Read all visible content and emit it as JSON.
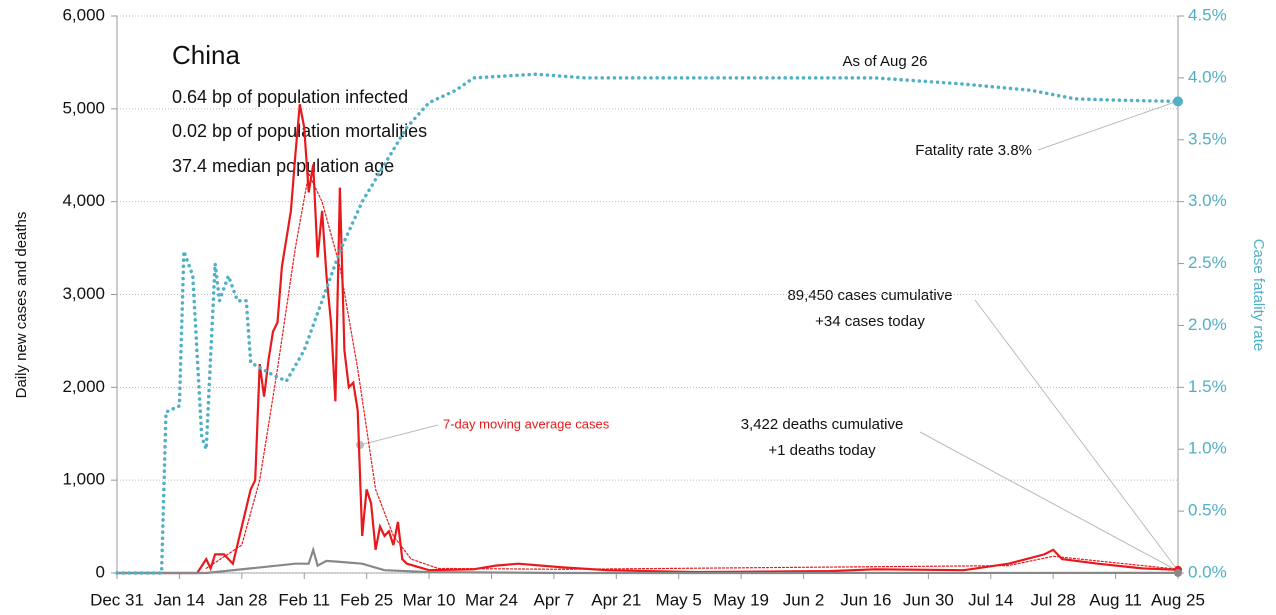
{
  "chart_data": {
    "type": "line",
    "title": "China",
    "subtitle": [
      "0.64 bp of population infected",
      "0.02 bp of population mortalities",
      "37.4 median population age"
    ],
    "ylabel": "Daily new cases and deaths",
    "y2label": "Case fatality rate",
    "annotations": [
      "As of Aug 26",
      "Fatality rate 3.8%",
      "89,450 cases cumulative",
      "+34 cases today",
      "3,422 deaths cumulative",
      "+1 deaths today"
    ],
    "xlim": [
      0,
      238
    ],
    "xticks": [
      {
        "value": 0,
        "label": "Dec 31"
      },
      {
        "value": 14,
        "label": "Jan 14"
      },
      {
        "value": 28,
        "label": "Jan 28"
      },
      {
        "value": 42,
        "label": "Feb 11"
      },
      {
        "value": 56,
        "label": "Feb 25"
      },
      {
        "value": 70,
        "label": "Mar 10"
      },
      {
        "value": 84,
        "label": "Mar 24"
      },
      {
        "value": 98,
        "label": "Apr 7"
      },
      {
        "value": 112,
        "label": "Apr 21"
      },
      {
        "value": 126,
        "label": "May 5"
      },
      {
        "value": 140,
        "label": "May 19"
      },
      {
        "value": 154,
        "label": "Jun 2"
      },
      {
        "value": 168,
        "label": "Jun 16"
      },
      {
        "value": 182,
        "label": "Jun 30"
      },
      {
        "value": 196,
        "label": "Jul 14"
      },
      {
        "value": 210,
        "label": "Jul 28"
      },
      {
        "value": 224,
        "label": "Aug 11"
      },
      {
        "value": 238,
        "label": "Aug 25"
      }
    ],
    "ylim": [
      0,
      6000
    ],
    "yticks": [
      0,
      {
        "value": 1000,
        "label": "1,000"
      },
      {
        "value": 2000,
        "label": "2,000"
      },
      {
        "value": 3000,
        "label": "3,000"
      },
      {
        "value": 4000,
        "label": "4,000"
      },
      {
        "value": 5000,
        "label": "5,000"
      },
      {
        "value": 6000,
        "label": "6,000"
      }
    ],
    "y2lim": [
      0,
      4.5
    ],
    "y2ticks": [
      {
        "value": 0,
        "label": "0.0%"
      },
      {
        "value": 0.5,
        "label": "0.5%"
      },
      {
        "value": 1,
        "label": "1.0%"
      },
      {
        "value": 1.5,
        "label": "1.5%"
      },
      {
        "value": 2,
        "label": "2.0%"
      },
      {
        "value": 2.5,
        "label": "2.5%"
      },
      {
        "value": 3,
        "label": "3.0%"
      },
      {
        "value": 3.5,
        "label": "3.5%"
      },
      {
        "value": 4,
        "label": "4.0%"
      },
      {
        "value": 4.5,
        "label": "4.5%"
      }
    ],
    "grid": true,
    "series": [
      {
        "color": "#e8191c",
        "style": "solid",
        "x": [
          0,
          18,
          20,
          21,
          22,
          24,
          26,
          28,
          30,
          31,
          32,
          33,
          34,
          35,
          36,
          37,
          38,
          39,
          40,
          41,
          42,
          43,
          44,
          45,
          46,
          47,
          48,
          49,
          50,
          51,
          52,
          53,
          54,
          55,
          56,
          57,
          58,
          59,
          60,
          61,
          62,
          63,
          64,
          65,
          70,
          80,
          85,
          90,
          100,
          110,
          130,
          160,
          170,
          190,
          200,
          208,
          210,
          212,
          220,
          230,
          238
        ],
        "values": [
          0,
          0,
          150,
          50,
          200,
          200,
          100,
          500,
          900,
          1000,
          2250,
          1900,
          2300,
          2600,
          2700,
          3300,
          3600,
          3900,
          4500,
          5050,
          4800,
          4100,
          4400,
          3400,
          3900,
          3200,
          2700,
          1850,
          4150,
          2400,
          2000,
          2050,
          1750,
          400,
          900,
          750,
          250,
          500,
          400,
          450,
          300,
          550,
          150,
          100,
          30,
          40,
          80,
          100,
          60,
          30,
          10,
          20,
          40,
          30,
          100,
          200,
          250,
          150,
          100,
          50,
          34
        ]
      },
      {
        "name": "7-day moving average cases",
        "color": "#e8191c",
        "style": "dotted",
        "x": [
          20,
          28,
          32,
          36,
          40,
          43,
          46,
          50,
          54,
          58,
          62,
          66,
          72,
          100,
          200,
          210,
          238
        ],
        "values": [
          50,
          300,
          1000,
          2200,
          3500,
          4300,
          4000,
          3300,
          2200,
          900,
          400,
          150,
          50,
          40,
          80,
          180,
          40
        ]
      },
      {
        "color": "#888888",
        "style": "solid",
        "x": [
          0,
          20,
          30,
          40,
          43,
          44,
          45,
          47,
          50,
          55,
          60,
          70,
          100,
          238
        ],
        "values": [
          0,
          0,
          50,
          100,
          100,
          250,
          80,
          130,
          120,
          100,
          30,
          10,
          0,
          1
        ]
      },
      {
        "color": "#4fb0c6",
        "style": "dotted",
        "axis": "y2",
        "x": [
          0,
          10,
          11,
          14,
          15,
          17,
          19,
          20,
          22,
          23,
          25,
          27,
          29,
          30,
          35,
          38,
          42,
          46,
          50,
          55,
          60,
          65,
          70,
          76,
          80,
          94,
          105,
          140,
          170,
          190,
          205,
          215,
          225,
          238
        ],
        "values": [
          0,
          0,
          1.3,
          1.35,
          2.6,
          2.4,
          1.1,
          1.0,
          2.5,
          2.2,
          2.4,
          2.2,
          2.2,
          1.7,
          1.6,
          1.55,
          1.8,
          2.2,
          2.6,
          3.0,
          3.3,
          3.6,
          3.8,
          3.9,
          4.0,
          4.03,
          4.0,
          4.0,
          4.0,
          3.95,
          3.9,
          3.83,
          3.82,
          3.81
        ]
      }
    ]
  }
}
